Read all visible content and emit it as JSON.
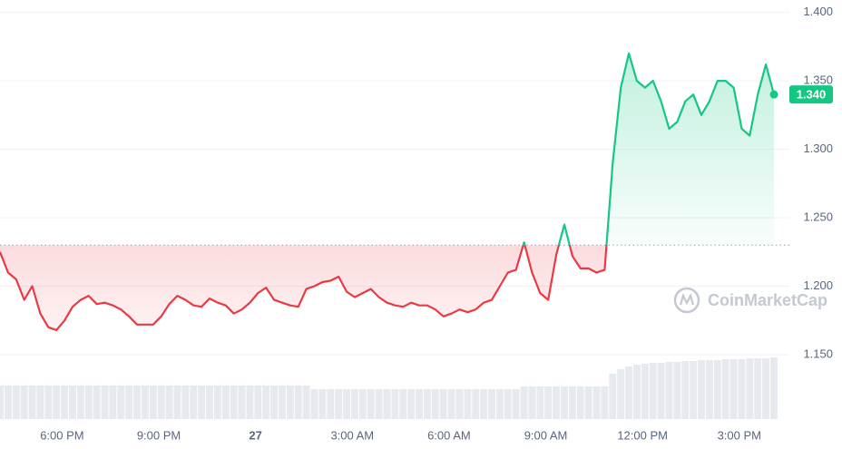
{
  "chart_data": {
    "type": "line",
    "values": [
      1.225,
      1.21,
      1.205,
      1.19,
      1.2,
      1.18,
      1.17,
      1.168,
      1.175,
      1.185,
      1.19,
      1.193,
      1.187,
      1.188,
      1.186,
      1.183,
      1.178,
      1.172,
      1.172,
      1.172,
      1.178,
      1.187,
      1.193,
      1.19,
      1.186,
      1.185,
      1.191,
      1.188,
      1.186,
      1.18,
      1.183,
      1.188,
      1.195,
      1.199,
      1.19,
      1.188,
      1.186,
      1.185,
      1.198,
      1.2,
      1.203,
      1.204,
      1.207,
      1.196,
      1.192,
      1.195,
      1.198,
      1.192,
      1.188,
      1.186,
      1.185,
      1.188,
      1.186,
      1.186,
      1.183,
      1.178,
      1.18,
      1.183,
      1.181,
      1.183,
      1.188,
      1.19,
      1.2,
      1.21,
      1.212,
      1.232,
      1.21,
      1.195,
      1.19,
      1.223,
      1.245,
      1.222,
      1.213,
      1.213,
      1.21,
      1.212,
      1.29,
      1.345,
      1.37,
      1.35,
      1.345,
      1.35,
      1.335,
      1.315,
      1.32,
      1.335,
      1.34,
      1.325,
      1.335,
      1.35,
      1.35,
      1.345,
      1.315,
      1.31,
      1.34,
      1.362,
      1.34
    ],
    "volume": {
      "axis": "y2",
      "values": [
        37,
        37,
        37,
        37,
        37,
        37,
        37,
        37,
        37,
        37,
        37,
        37,
        37,
        37,
        37,
        37,
        37,
        37,
        37,
        37,
        37,
        37,
        37,
        37,
        37,
        37,
        37,
        37,
        37,
        37,
        37,
        37,
        37,
        37,
        37,
        37,
        37,
        37,
        37,
        33,
        33,
        33,
        33,
        33,
        33,
        33,
        33,
        33,
        33,
        33,
        33,
        33,
        33,
        33,
        33,
        33,
        33,
        33,
        33,
        33,
        33,
        33,
        33,
        33,
        33,
        36,
        36,
        36,
        36,
        36,
        36,
        36,
        36,
        36,
        36,
        36,
        50,
        55,
        58,
        60,
        61,
        62,
        62,
        63,
        63,
        64,
        64,
        65,
        65,
        65,
        66,
        66,
        66,
        67,
        67,
        67,
        68
      ]
    },
    "y2lim": [
      0,
      100
    ],
    "xlim": [
      0,
      96
    ],
    "xticks": [
      {
        "value": 7.7,
        "label": "6:00 PM"
      },
      {
        "value": 19.7,
        "label": "9:00 PM"
      },
      {
        "value": 31.7,
        "label": "27"
      },
      {
        "value": 43.7,
        "label": "3:00 AM"
      },
      {
        "value": 55.7,
        "label": "6:00 AM"
      },
      {
        "value": 67.7,
        "label": "9:00 AM"
      },
      {
        "value": 79.7,
        "label": "12:00 PM"
      },
      {
        "value": 91.7,
        "label": "3:00 PM"
      }
    ],
    "ylim": [
      1.103,
      1.409
    ],
    "yticks": [
      {
        "value": 1.15,
        "label": "1.150"
      },
      {
        "value": 1.2,
        "label": "1.200"
      },
      {
        "value": 1.25,
        "label": "1.250"
      },
      {
        "value": 1.3,
        "label": "1.300"
      },
      {
        "value": 1.35,
        "label": "1.350"
      },
      {
        "value": 1.4,
        "label": "1.400"
      }
    ],
    "reference": 1.23,
    "up_color": "#16c784",
    "down_color": "#ea3943",
    "grid": true,
    "last_price_label": "1.340",
    "watermark": "CoinMarketCap"
  }
}
